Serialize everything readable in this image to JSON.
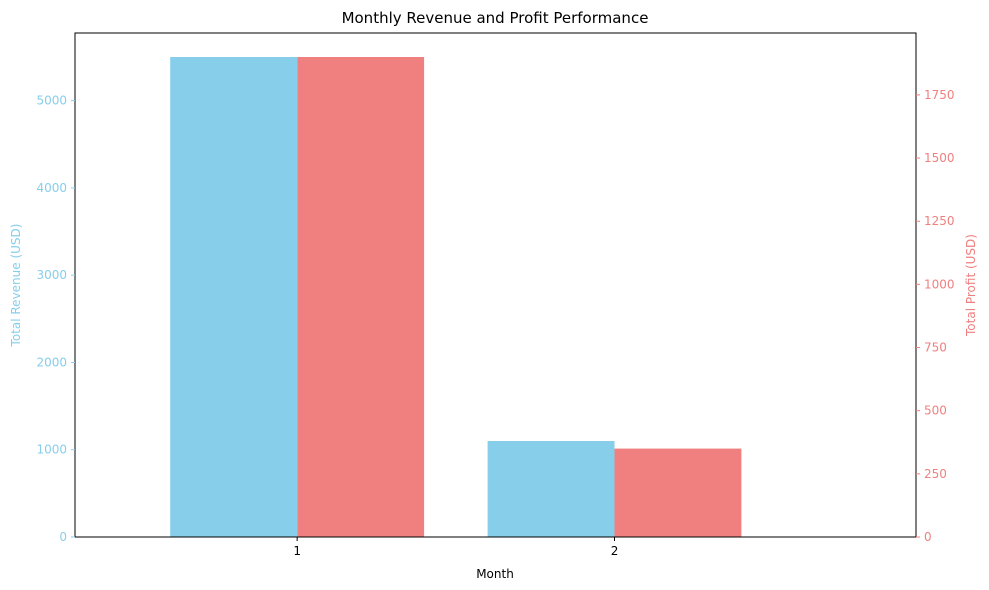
{
  "chart_data": {
    "type": "bar",
    "title": "Monthly Revenue and Profit Performance",
    "xlabel": "Month",
    "categories": [
      "1",
      "2"
    ],
    "grid": false,
    "left_axis": {
      "label": "Total Revenue (USD)",
      "color": "#87CEEB",
      "ylim": [
        0,
        5775
      ],
      "ticks": [
        "0",
        "1000",
        "2000",
        "3000",
        "4000",
        "5000"
      ],
      "tick_values": [
        0,
        1000,
        2000,
        3000,
        4000,
        5000
      ]
    },
    "right_axis": {
      "label": "Total Profit (USD)",
      "color": "#F08080",
      "ylim": [
        0,
        1995
      ],
      "ticks": [
        "0",
        "250",
        "500",
        "750",
        "1000",
        "1250",
        "1500",
        "1750"
      ],
      "tick_values": [
        0,
        250,
        500,
        750,
        1000,
        1250,
        1500,
        1750
      ]
    },
    "series": [
      {
        "axis": "left",
        "color": "#87CEEB",
        "values": [
          5500,
          1100
        ]
      },
      {
        "axis": "right",
        "color": "#F08080",
        "values": [
          1900,
          350
        ]
      }
    ]
  }
}
